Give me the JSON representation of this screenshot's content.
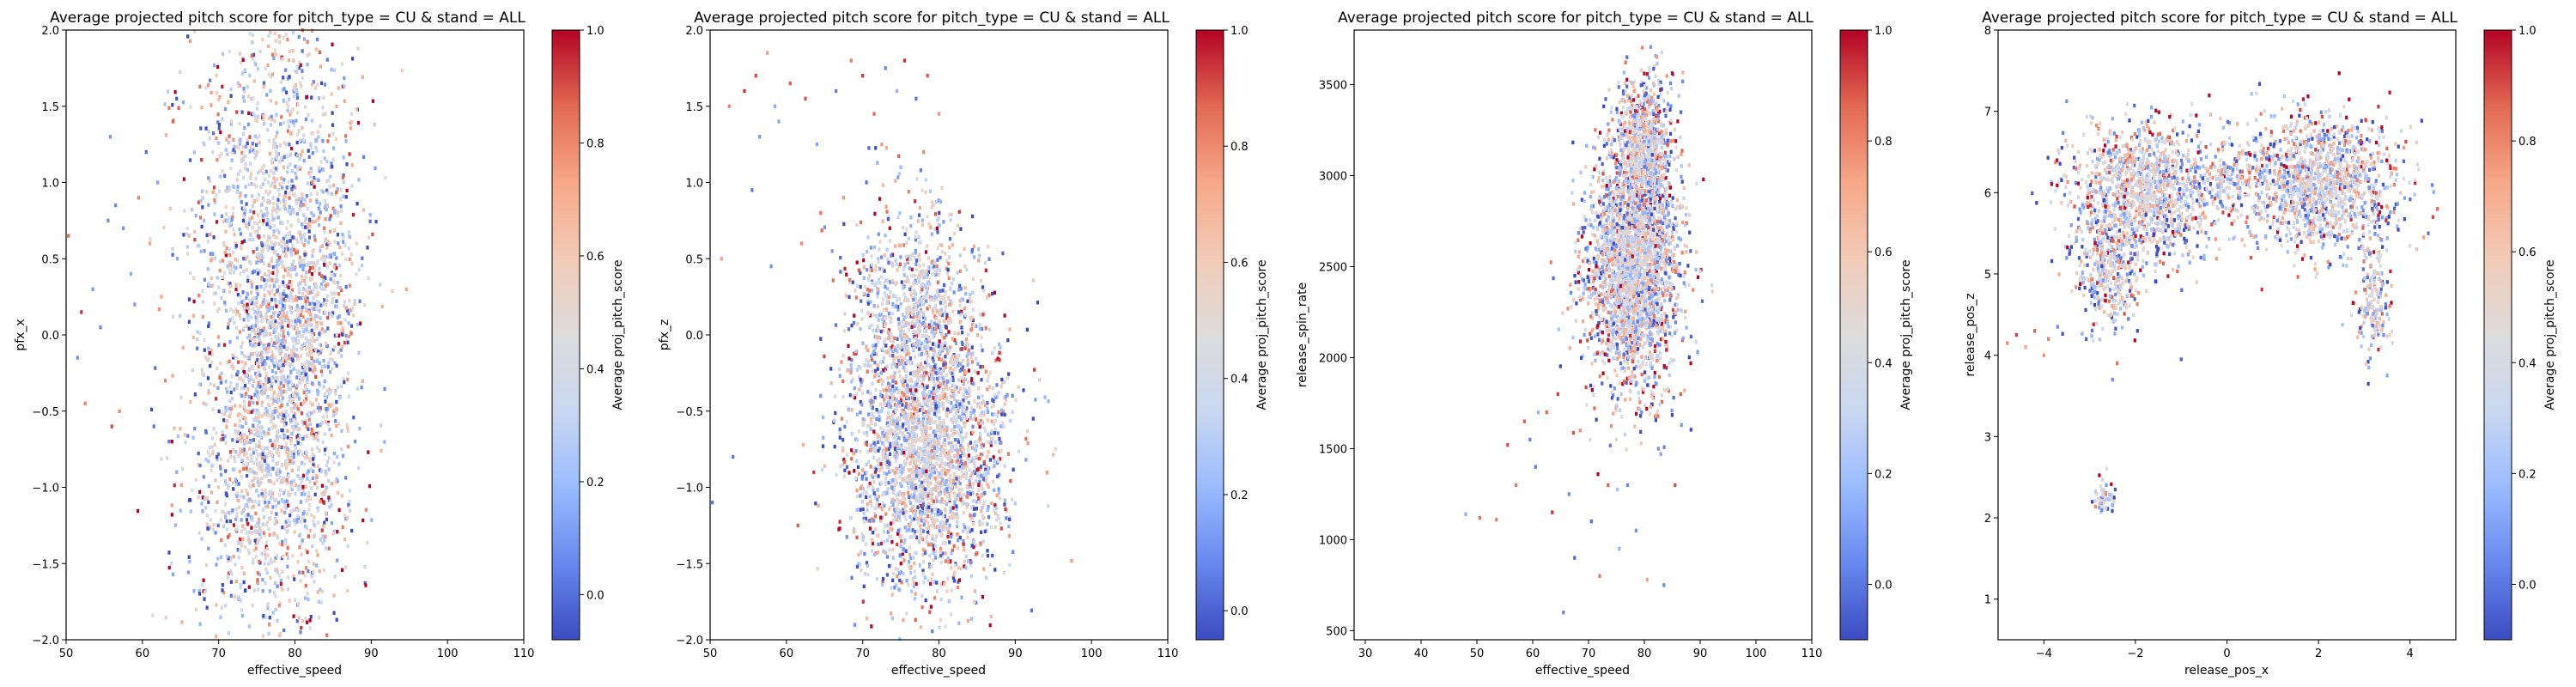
{
  "figure": {
    "background": "#ffffff"
  },
  "colormap": {
    "name": "coolwarm",
    "stops": [
      "#3b4cc0",
      "#6788ee",
      "#9abbff",
      "#c9d7f0",
      "#dddcdc",
      "#f2cbb7",
      "#f7a889",
      "#e26952",
      "#b40426"
    ]
  },
  "chart_data": [
    {
      "type": "heatmap",
      "title": "Average projected pitch score for pitch_type = CU & stand = ALL",
      "xlabel": "effective_speed",
      "ylabel": "pfx_x",
      "xlim": [
        50,
        110
      ],
      "ylim": [
        -2.0,
        2.0
      ],
      "xticks": [
        50,
        60,
        70,
        80,
        90,
        100,
        110
      ],
      "yticks": [
        -2.0,
        -1.5,
        -1.0,
        -0.5,
        0.0,
        0.5,
        1.0,
        1.5,
        2.0
      ],
      "xtick_labels": [
        "50",
        "60",
        "70",
        "80",
        "90",
        "100",
        "110"
      ],
      "ytick_labels": [
        "−2.0",
        "−1.5",
        "−1.0",
        "−0.5",
        "0.0",
        "0.5",
        "1.0",
        "1.5",
        "2.0"
      ],
      "colorbar": {
        "label": "Average proj_pitch_score",
        "range": [
          -0.08,
          1.0
        ],
        "ticks": [
          0.0,
          0.2,
          0.4,
          0.6,
          0.8,
          1.0
        ],
        "tick_labels": [
          "0.0",
          "0.2",
          "0.4",
          "0.6",
          "0.8",
          "1.0"
        ]
      },
      "clusters": [
        {
          "cx": 77.5,
          "cy": 0.8,
          "sx": 5.5,
          "sy": 0.7,
          "weight": 1.0
        },
        {
          "cx": 76.5,
          "cy": -0.9,
          "sx": 5.0,
          "sy": 0.55,
          "weight": 1.0
        },
        {
          "cx": 79.5,
          "cy": 0.0,
          "sx": 4.0,
          "sy": 0.4,
          "weight": 0.5
        }
      ],
      "sparse": [
        [
          50.3,
          0.65
        ],
        [
          51.5,
          -0.15
        ],
        [
          52.5,
          -0.45
        ],
        [
          53.5,
          0.3
        ],
        [
          54.5,
          0.05
        ],
        [
          55.5,
          0.75
        ],
        [
          55.8,
          1.3
        ],
        [
          56.5,
          0.85
        ],
        [
          57.5,
          0.7
        ],
        [
          57.0,
          -0.5
        ],
        [
          58.5,
          0.4
        ],
        [
          59.0,
          0.2
        ],
        [
          60.5,
          1.2
        ],
        [
          61.0,
          0.6
        ],
        [
          62.0,
          1.0
        ],
        [
          62.5,
          0.25
        ],
        [
          63.0,
          -0.3
        ],
        [
          63.5,
          -0.7
        ],
        [
          61.5,
          -0.6
        ],
        [
          64.0,
          1.4
        ],
        [
          64.5,
          -0.9
        ],
        [
          59.5,
          0.9
        ],
        [
          52.0,
          0.15
        ],
        [
          56.0,
          -0.6
        ]
      ]
    },
    {
      "type": "heatmap",
      "title": "Average projected pitch score for pitch_type = CU & stand = ALL",
      "xlabel": "effective_speed",
      "ylabel": "pfx_z",
      "xlim": [
        50,
        110
      ],
      "ylim": [
        -2.0,
        2.0
      ],
      "xticks": [
        50,
        60,
        70,
        80,
        90,
        100,
        110
      ],
      "yticks": [
        -2.0,
        -1.5,
        -1.0,
        -0.5,
        0.0,
        0.5,
        1.0,
        1.5,
        2.0
      ],
      "xtick_labels": [
        "50",
        "60",
        "70",
        "80",
        "90",
        "100",
        "110"
      ],
      "ytick_labels": [
        "−2.0",
        "−1.5",
        "−1.0",
        "−0.5",
        "0.0",
        "0.5",
        "1.0",
        "1.5",
        "2.0"
      ],
      "colorbar": {
        "label": "Average proj_pitch_score",
        "range": [
          -0.05,
          1.0
        ],
        "ticks": [
          0.0,
          0.2,
          0.4,
          0.6,
          0.8,
          1.0
        ],
        "tick_labels": [
          "0.0",
          "0.2",
          "0.4",
          "0.6",
          "0.8",
          "1.0"
        ]
      },
      "clusters": [
        {
          "cx": 78.5,
          "cy": -0.75,
          "sx": 5.0,
          "sy": 0.45,
          "weight": 1.3
        },
        {
          "cx": 77.0,
          "cy": 0.2,
          "sx": 4.0,
          "sy": 0.35,
          "weight": 0.35
        }
      ],
      "sparse": [
        [
          52.5,
          1.5
        ],
        [
          54.5,
          1.6
        ],
        [
          56.0,
          1.7
        ],
        [
          57.5,
          1.85
        ],
        [
          56.5,
          1.3
        ],
        [
          58.5,
          1.5
        ],
        [
          59.0,
          1.4
        ],
        [
          60.5,
          1.65
        ],
        [
          62.5,
          1.55
        ],
        [
          64.0,
          1.25
        ],
        [
          66.5,
          1.6
        ],
        [
          68.5,
          1.8
        ],
        [
          70.0,
          1.7
        ],
        [
          71.5,
          1.45
        ],
        [
          73.0,
          1.75
        ],
        [
          74.5,
          1.6
        ],
        [
          75.5,
          1.8
        ],
        [
          77.0,
          1.55
        ],
        [
          78.5,
          1.7
        ],
        [
          80.0,
          1.45
        ],
        [
          72.5,
          1.25
        ],
        [
          75.0,
          1.1
        ],
        [
          78.0,
          1.2
        ],
        [
          70.5,
          1.0
        ],
        [
          67.5,
          0.9
        ],
        [
          64.5,
          0.8
        ],
        [
          62.0,
          0.6
        ],
        [
          58.0,
          0.45
        ],
        [
          55.5,
          0.95
        ],
        [
          51.5,
          0.5
        ],
        [
          53.0,
          -0.8
        ],
        [
          50.3,
          -1.1
        ],
        [
          61.5,
          -1.25
        ],
        [
          64.5,
          -0.4
        ],
        [
          66.0,
          0.55
        ]
      ]
    },
    {
      "type": "heatmap",
      "title": "Average projected pitch score for pitch_type = CU & stand = ALL",
      "xlabel": "effective_speed",
      "ylabel": "release_spin_rate",
      "xlim": [
        28,
        110
      ],
      "ylim": [
        450,
        3800
      ],
      "xticks": [
        30,
        40,
        50,
        60,
        70,
        80,
        90,
        100,
        110
      ],
      "yticks": [
        500,
        1000,
        1500,
        2000,
        2500,
        3000,
        3500
      ],
      "xtick_labels": [
        "30",
        "40",
        "50",
        "60",
        "70",
        "80",
        "90",
        "100",
        "110"
      ],
      "ytick_labels": [
        "500",
        "1000",
        "1500",
        "2000",
        "2500",
        "3000",
        "3500"
      ],
      "colorbar": {
        "label": "Average proj_pitch_score",
        "range": [
          -0.1,
          1.0
        ],
        "ticks": [
          0.0,
          0.2,
          0.4,
          0.6,
          0.8,
          1.0
        ],
        "tick_labels": [
          "0.0",
          "0.2",
          "0.4",
          "0.6",
          "0.8",
          "1.0"
        ]
      },
      "clusters": [
        {
          "cx": 78.0,
          "cy": 2500,
          "sx": 4.2,
          "sy": 330,
          "weight": 1.0
        },
        {
          "cx": 80.0,
          "cy": 3150,
          "sx": 2.5,
          "sy": 200,
          "weight": 0.3
        }
      ],
      "sparse": [
        [
          48.0,
          1140
        ],
        [
          50.5,
          1120
        ],
        [
          53.5,
          1110
        ],
        [
          55.5,
          1520
        ],
        [
          57.0,
          1300
        ],
        [
          59.5,
          1550
        ],
        [
          60.5,
          1400
        ],
        [
          62.5,
          1700
        ],
        [
          63.5,
          1150
        ],
        [
          64.5,
          1800
        ],
        [
          65.5,
          600
        ],
        [
          66.5,
          1250
        ],
        [
          67.5,
          900
        ],
        [
          68.5,
          1600
        ],
        [
          70.5,
          1100
        ],
        [
          72.0,
          800
        ],
        [
          73.5,
          1300
        ],
        [
          75.5,
          950
        ],
        [
          77.0,
          1300
        ],
        [
          78.5,
          1050
        ],
        [
          80.5,
          780
        ],
        [
          83.5,
          750
        ],
        [
          85.5,
          1300
        ],
        [
          82.5,
          1500
        ],
        [
          79.5,
          1700
        ],
        [
          86.5,
          1800
        ],
        [
          61.0,
          1700
        ],
        [
          58.5,
          1650
        ]
      ]
    },
    {
      "type": "heatmap",
      "title": "Average projected pitch score for pitch_type = CU & stand = ALL",
      "xlabel": "release_pos_x",
      "ylabel": "release_pos_z",
      "xlim": [
        -5.0,
        5.0
      ],
      "ylim": [
        0.5,
        8.0
      ],
      "xticks": [
        -4,
        -2,
        0,
        2,
        4
      ],
      "yticks": [
        1,
        2,
        3,
        4,
        5,
        6,
        7,
        8
      ],
      "xtick_labels": [
        "−4",
        "−2",
        "0",
        "2",
        "4"
      ],
      "ytick_labels": [
        "1",
        "2",
        "3",
        "4",
        "5",
        "6",
        "7",
        "8"
      ],
      "colorbar": {
        "label": "Average proj_pitch_score",
        "range": [
          -0.1,
          1.0
        ],
        "ticks": [
          0.0,
          0.2,
          0.4,
          0.6,
          0.8,
          1.0
        ],
        "tick_labels": [
          "0.0",
          "0.2",
          "0.4",
          "0.6",
          "0.8",
          "1.0"
        ]
      },
      "clusters": [
        {
          "cx": -1.8,
          "cy": 6.0,
          "sx": 0.8,
          "sy": 0.42,
          "weight": 1.0
        },
        {
          "cx": 2.0,
          "cy": 6.1,
          "sx": 0.85,
          "sy": 0.42,
          "weight": 1.0
        },
        {
          "cx": -2.6,
          "cy": 5.0,
          "sx": 0.35,
          "sy": 0.3,
          "weight": 0.25
        },
        {
          "cx": 3.2,
          "cy": 4.7,
          "sx": 0.18,
          "sy": 0.35,
          "weight": 0.12
        },
        {
          "cx": -2.7,
          "cy": 2.25,
          "sx": 0.12,
          "sy": 0.12,
          "weight": 0.04
        },
        {
          "cx": 0.0,
          "cy": 6.2,
          "sx": 0.3,
          "sy": 0.2,
          "weight": 0.1
        }
      ],
      "sparse": [
        [
          -4.6,
          4.25
        ],
        [
          -4.4,
          4.1
        ],
        [
          -4.2,
          4.3
        ],
        [
          -4.0,
          4.0
        ],
        [
          -3.9,
          4.2
        ],
        [
          -3.7,
          4.35
        ],
        [
          -4.8,
          4.15
        ],
        [
          -2.5,
          3.7
        ],
        [
          -2.4,
          3.9
        ],
        [
          4.4,
          5.5
        ],
        [
          4.5,
          5.7
        ],
        [
          4.3,
          5.45
        ],
        [
          3.5,
          3.75
        ],
        [
          3.1,
          3.85
        ],
        [
          -3.4,
          5.6
        ],
        [
          -3.5,
          5.2
        ],
        [
          4.6,
          5.8
        ],
        [
          -1.0,
          3.95
        ]
      ]
    }
  ]
}
